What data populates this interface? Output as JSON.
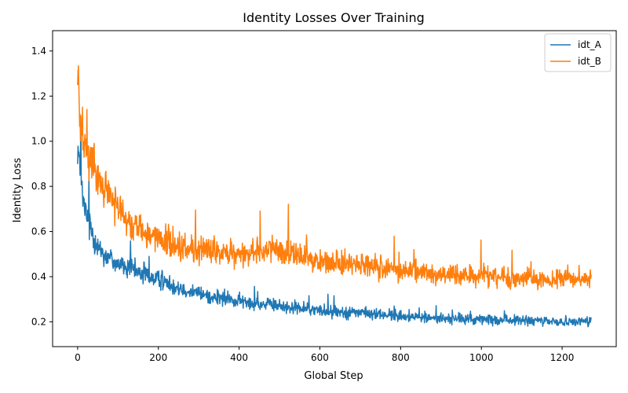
{
  "chart_data": {
    "type": "line",
    "title": "Identity Losses Over Training",
    "xlabel": "Global Step",
    "ylabel": "Identity Loss",
    "xlim": [
      -62,
      1334
    ],
    "ylim": [
      0.09,
      1.49
    ],
    "xticks": [
      0,
      200,
      400,
      600,
      800,
      1000,
      1200
    ],
    "yticks": [
      0.2,
      0.4,
      0.6,
      0.8,
      1.0,
      1.2,
      1.4
    ],
    "xtick_labels": [
      "0",
      "200",
      "400",
      "600",
      "800",
      "1000",
      "1200"
    ],
    "ytick_labels": [
      "0.2",
      "0.4",
      "0.6",
      "0.8",
      "1.0",
      "1.2",
      "1.4"
    ],
    "grid": false,
    "legend_position": "upper right",
    "x_range": [
      0,
      1272
    ],
    "series": [
      {
        "name": "idt_A",
        "color": "#1f77b4",
        "x": [
          0,
          5,
          10,
          15,
          20,
          30,
          40,
          50,
          60,
          80,
          100,
          120,
          150,
          180,
          200,
          250,
          300,
          350,
          400,
          450,
          500,
          550,
          600,
          650,
          700,
          800,
          900,
          1000,
          1100,
          1200,
          1272
        ],
        "values": [
          1.0,
          0.88,
          0.78,
          0.72,
          0.68,
          0.63,
          0.58,
          0.54,
          0.51,
          0.48,
          0.46,
          0.44,
          0.42,
          0.4,
          0.385,
          0.355,
          0.325,
          0.305,
          0.29,
          0.28,
          0.27,
          0.26,
          0.25,
          0.245,
          0.24,
          0.225,
          0.215,
          0.21,
          0.205,
          0.2,
          0.205
        ]
      },
      {
        "name": "idt_B",
        "color": "#ff7f0e",
        "x": [
          0,
          5,
          10,
          15,
          20,
          30,
          40,
          50,
          60,
          80,
          100,
          120,
          150,
          180,
          200,
          250,
          300,
          350,
          400,
          450,
          500,
          550,
          600,
          650,
          700,
          800,
          900,
          1000,
          1100,
          1200,
          1272
        ],
        "values": [
          1.3,
          1.15,
          1.05,
          1.0,
          0.96,
          0.92,
          0.88,
          0.84,
          0.81,
          0.76,
          0.71,
          0.66,
          0.62,
          0.59,
          0.57,
          0.53,
          0.51,
          0.5,
          0.5,
          0.52,
          0.52,
          0.49,
          0.47,
          0.46,
          0.45,
          0.43,
          0.41,
          0.4,
          0.39,
          0.39,
          0.39
        ]
      }
    ]
  }
}
